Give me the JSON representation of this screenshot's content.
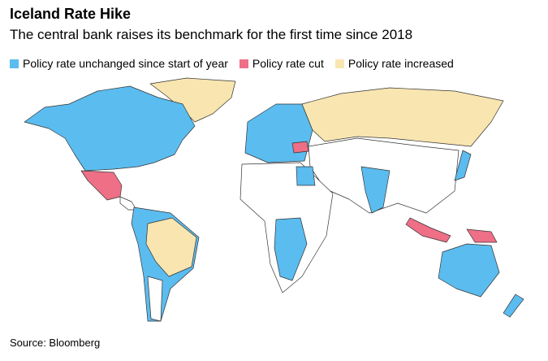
{
  "header": {
    "title": "Iceland Rate Hike",
    "subtitle": "The central bank raises its benchmark for the first time since 2018"
  },
  "legend": [
    {
      "label": "Policy rate unchanged since start of year",
      "color": "#5bbcef"
    },
    {
      "label": "Policy rate cut",
      "color": "#ee6f86"
    },
    {
      "label": "Policy rate increased",
      "color": "#f8e5b0"
    }
  ],
  "source": "Source: Bloomberg"
}
